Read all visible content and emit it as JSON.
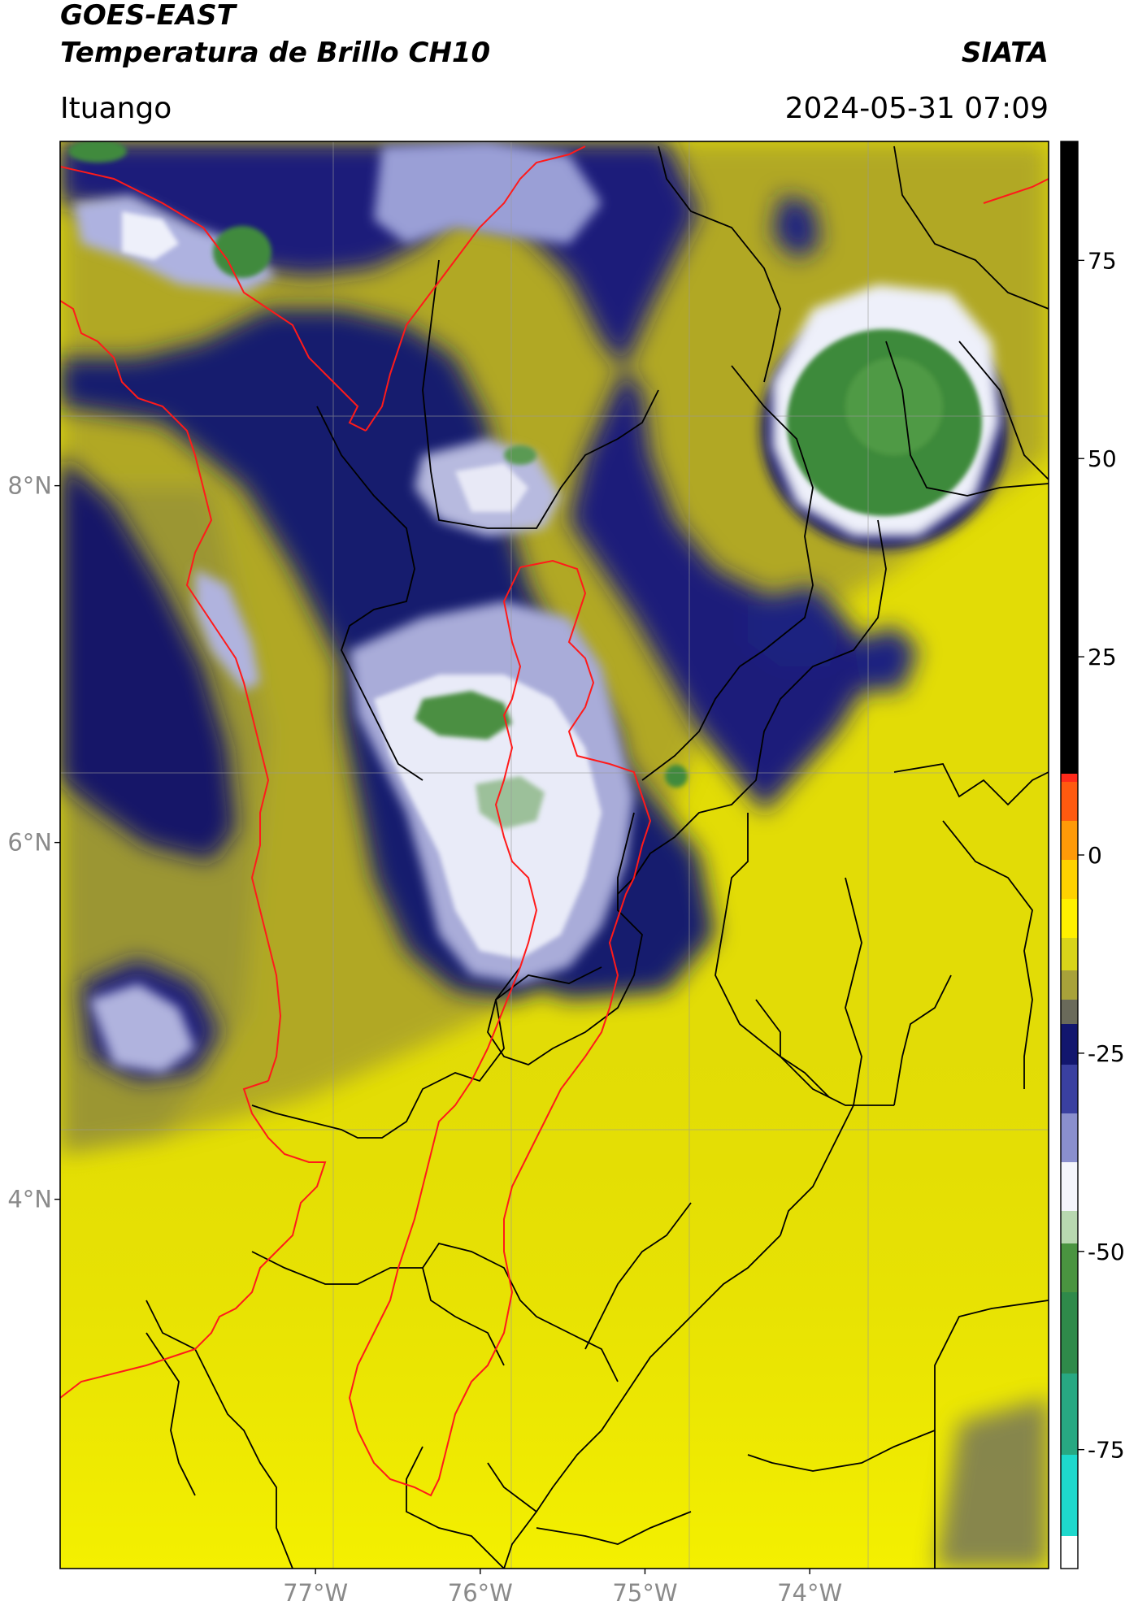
{
  "header": {
    "title_line1": "GOES-EAST",
    "title_line2": "Temperatura de Brillo CH10",
    "agency": "SIATA",
    "location": "Ituango",
    "timestamp": "2024-05-31 07:09"
  },
  "map": {
    "lon_range": [
      -78.55,
      -72.55
    ],
    "lat_range": [
      1.93,
      9.93
    ],
    "lon_ticks": [
      {
        "value": -77,
        "label": "77°W"
      },
      {
        "value": -76,
        "label": "76°W"
      },
      {
        "value": -75,
        "label": "75°W"
      },
      {
        "value": -74,
        "label": "74°W"
      }
    ],
    "lat_ticks": [
      {
        "value": 8,
        "label": "8°N"
      },
      {
        "value": 6,
        "label": "6°N"
      },
      {
        "value": 4,
        "label": "4°N"
      }
    ],
    "gridlines": true,
    "base_color": "#e6e000",
    "border_colors": {
      "international_and_antioquia": "#ff1a1a",
      "departments": "#000000"
    }
  },
  "colorbar": {
    "range": [
      -90,
      90
    ],
    "ticks": [
      {
        "value": 75,
        "label": "75"
      },
      {
        "value": 50,
        "label": "50"
      },
      {
        "value": 25,
        "label": "25"
      },
      {
        "value": 0,
        "label": "0"
      },
      {
        "value": -25,
        "label": "-25"
      },
      {
        "value": -50,
        "label": "-50"
      },
      {
        "value": -75,
        "label": "-75"
      }
    ]
  }
}
